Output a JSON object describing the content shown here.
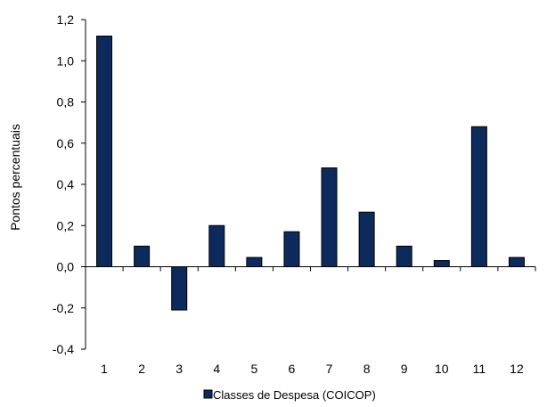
{
  "chart_data": {
    "type": "bar",
    "title": "",
    "xlabel": "",
    "ylabel": "Pontos percentuais",
    "categories": [
      "1",
      "2",
      "3",
      "4",
      "5",
      "6",
      "7",
      "8",
      "9",
      "10",
      "11",
      "12"
    ],
    "series": [
      {
        "name": "Classes de Despesa (COICOP)",
        "values": [
          1.12,
          0.1,
          -0.21,
          0.2,
          0.045,
          0.17,
          0.48,
          0.265,
          0.1,
          0.03,
          0.68,
          0.045
        ]
      }
    ],
    "ylim": [
      -0.4,
      1.2
    ],
    "yticks": [
      "-0,4",
      "-0,2",
      "0,0",
      "0,2",
      "0,4",
      "0,6",
      "0,8",
      "1,0",
      "1,2"
    ],
    "grid": false,
    "legend": "bottom",
    "colors": {
      "bar_fill": "#0d2a5c",
      "bar_stroke": "#000000",
      "axis": "#000000"
    }
  }
}
